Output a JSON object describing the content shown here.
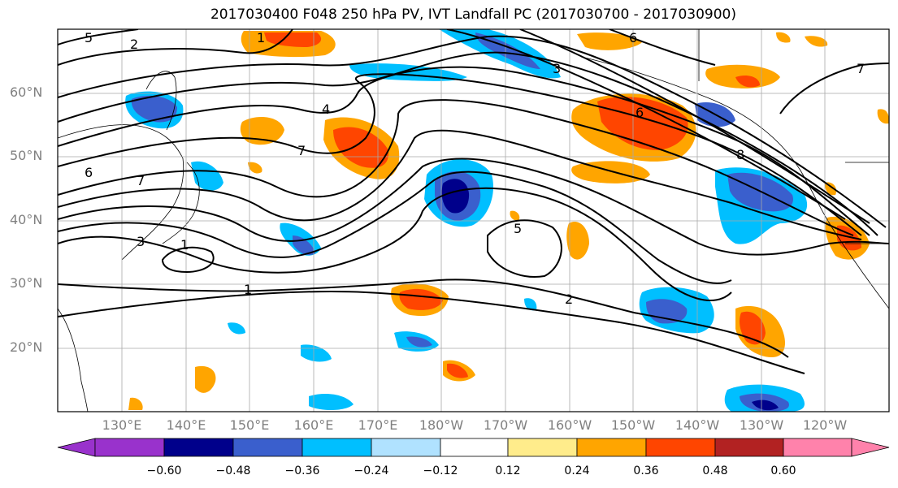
{
  "title": "2017030400 F048 250 hPa PV, IVT Landfall PC (2017030700 - 2017030900)",
  "map": {
    "lat_labels": [
      "60°N",
      "50°N",
      "40°N",
      "30°N",
      "20°N"
    ],
    "lon_labels": [
      "130°E",
      "140°E",
      "150°E",
      "160°E",
      "170°E",
      "180°W",
      "170°W",
      "160°W",
      "150°W",
      "140°W",
      "130°W",
      "120°W"
    ],
    "contour_labels": [
      "1",
      "2",
      "3",
      "4",
      "5",
      "6",
      "7",
      "8"
    ]
  },
  "colorbar": {
    "ticks": [
      "−0.60",
      "−0.48",
      "−0.36",
      "−0.24",
      "−0.12",
      "0.12",
      "0.24",
      "0.36",
      "0.48",
      "0.60"
    ],
    "colors": [
      "#9932cc",
      "#00008b",
      "#3a5fcd",
      "#00bfff",
      "#b0e2ff",
      "#ffffff",
      "#ffec8b",
      "#ffa500",
      "#ff4500",
      "#b22222",
      "#ff82ab"
    ]
  },
  "colors": {
    "neg_dark": "#00008b",
    "neg_mid": "#3a5fcd",
    "neg_light": "#00bfff",
    "neg_pale": "#b0e2ff",
    "pos_pale": "#ffec8b",
    "pos_mid": "#ffa500",
    "pos_strong": "#ff4500",
    "grid": "#a9a9a9"
  }
}
